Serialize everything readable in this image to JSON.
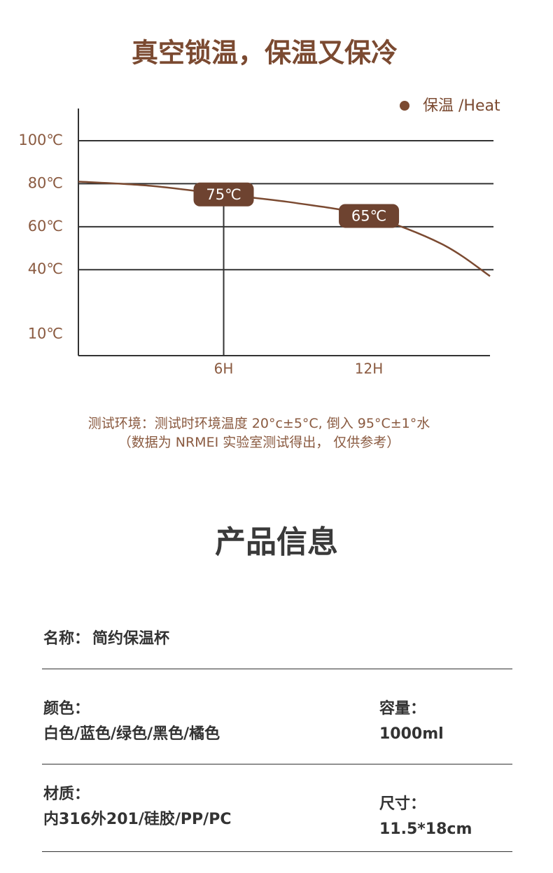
{
  "chart_data": {
    "type": "line",
    "title": "真空锁温，保温又保冷",
    "xlim": [
      0,
      17
    ],
    "xticks": [
      {
        "value": 6,
        "label": "6H"
      },
      {
        "value": 12,
        "label": "12H"
      }
    ],
    "ylim": [
      0,
      115
    ],
    "yticks": [
      {
        "value": 100,
        "label": "100℃"
      },
      {
        "value": 80,
        "label": "80℃"
      },
      {
        "value": 60,
        "label": "60℃"
      },
      {
        "value": 40,
        "label": "40℃"
      },
      {
        "value": 10,
        "label": "10℃"
      }
    ],
    "grid": true,
    "legend": "top-right",
    "series": [
      {
        "name": "保温 /Heat",
        "color": "#7b4a31",
        "x": [
          0,
          3,
          6,
          9,
          12,
          15,
          17
        ],
        "values": [
          81,
          79,
          75,
          71,
          65,
          52,
          37
        ]
      }
    ],
    "annotations": [
      {
        "x": 6,
        "y": 75,
        "label": "75℃",
        "drop_line": true
      },
      {
        "x": 12,
        "y": 65,
        "label": "65℃"
      }
    ]
  },
  "notes": [
    "测试环境：测试时环境温度 20°c±5°C, 倒入 95°C±1°水",
    "（数据为 NRMEI 实验室测试得出，  仅供参考）"
  ],
  "product_info": {
    "title": "产品信息",
    "rows": [
      [
        {
          "label": "名称：",
          "value": "简约保温杯"
        }
      ],
      [
        {
          "label": "颜色：",
          "value": "白色/蓝色/绿色/黑色/橘色"
        },
        {
          "label": "容量：",
          "value": "1000ml"
        }
      ],
      [
        {
          "label": "材质：",
          "value": "内316外201/硅胶/PP/PC"
        },
        {
          "label": "尺寸：",
          "value": "11.5*18cm"
        }
      ]
    ]
  }
}
